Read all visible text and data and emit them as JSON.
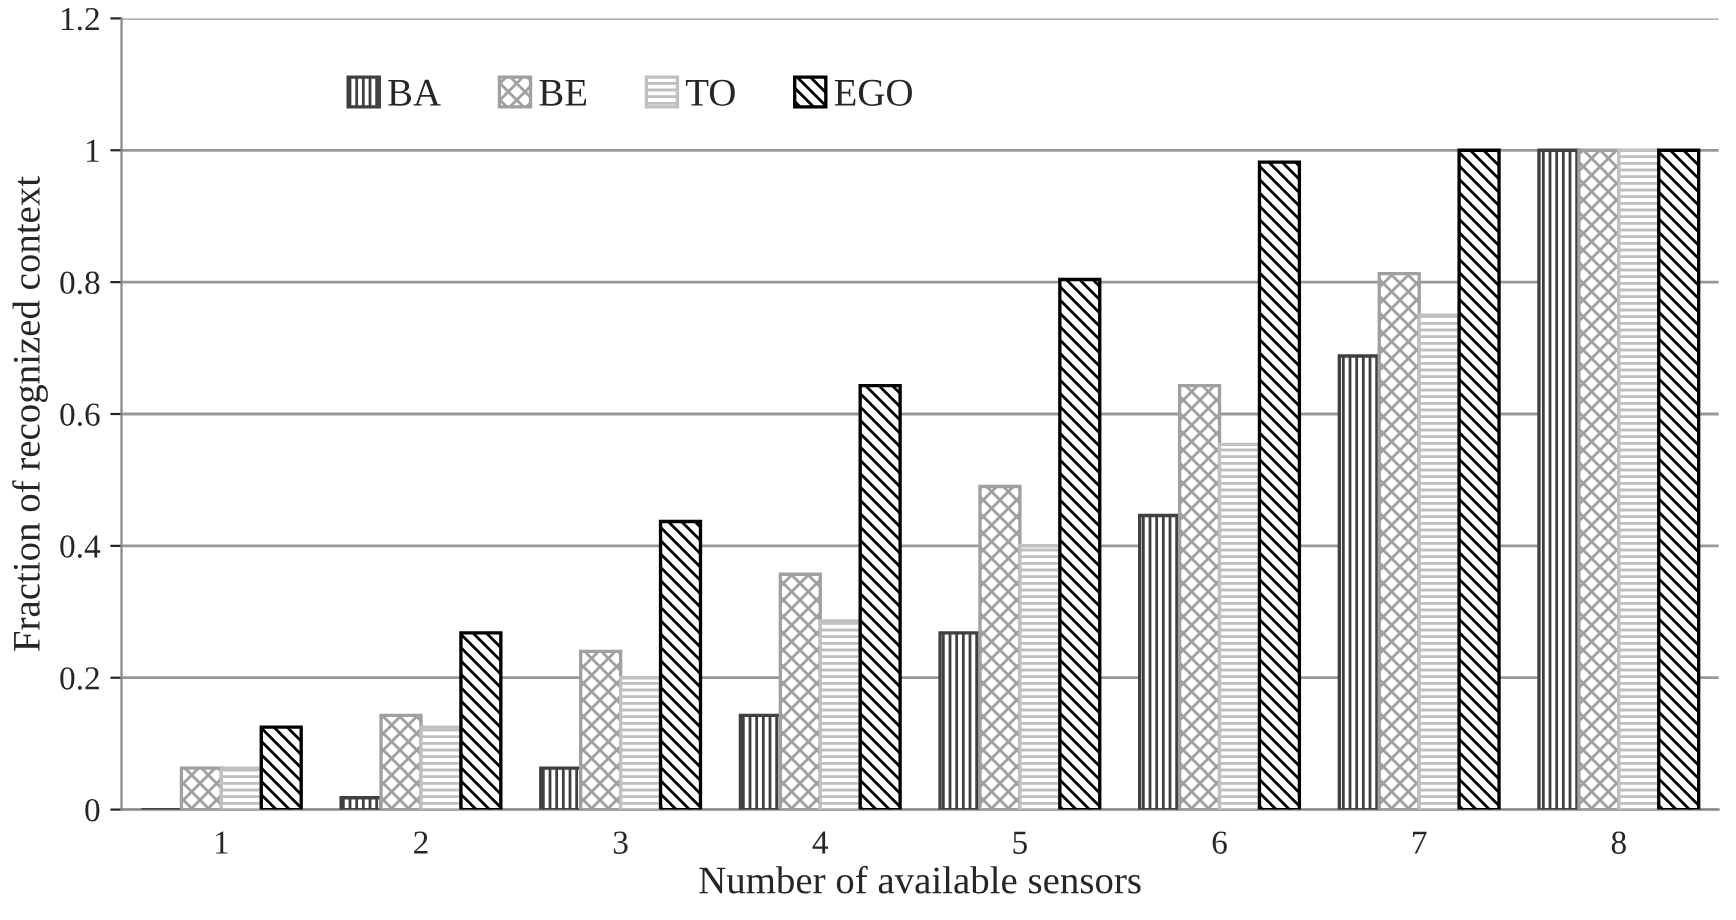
{
  "chart_data": {
    "type": "bar",
    "xlabel": "Number of available sensors",
    "ylabel": "Fraction of recognized context",
    "categories": [
      "1",
      "2",
      "3",
      "4",
      "5",
      "6",
      "7",
      "8"
    ],
    "series": [
      {
        "name": "BA",
        "color": "#404040",
        "values": [
          0,
          0.018,
          0.063,
          0.143,
          0.268,
          0.446,
          0.688,
          1.0
        ]
      },
      {
        "name": "BE",
        "color": "#a0a0a0",
        "values": [
          0.063,
          0.143,
          0.24,
          0.357,
          0.49,
          0.643,
          0.813,
          1.0
        ]
      },
      {
        "name": "TO",
        "color": "#c0c0c0",
        "values": [
          0.063,
          0.125,
          0.2,
          0.286,
          0.4,
          0.554,
          0.75,
          1.0
        ]
      },
      {
        "name": "EGO",
        "color": "#000000",
        "values": [
          0.125,
          0.268,
          0.437,
          0.643,
          0.804,
          0.982,
          1.0,
          1.0
        ]
      }
    ],
    "ylim": [
      0,
      1.2
    ],
    "yticks": [
      0,
      0.2,
      0.4,
      0.6,
      0.8,
      1,
      1.2
    ],
    "grid": "y",
    "legend": "top left"
  }
}
